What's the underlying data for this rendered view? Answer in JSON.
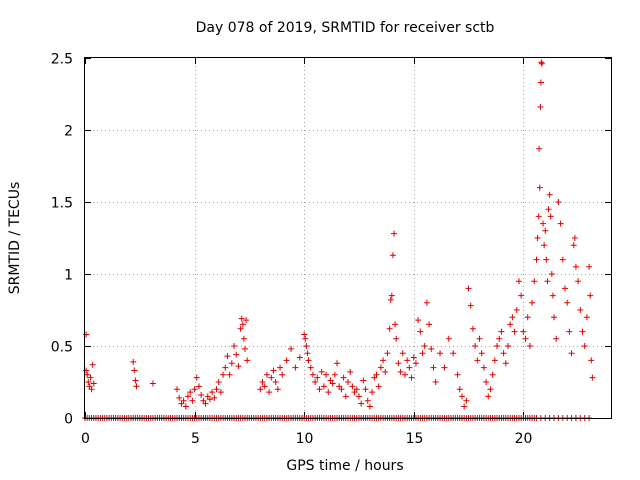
{
  "chart_data": {
    "type": "scatter",
    "title": "Day 078 of 2019, SRMTID for receiver sctb",
    "xlabel": "GPS time / hours",
    "ylabel": "SRMTID / TECUs",
    "xlim": [
      0,
      24
    ],
    "ylim": [
      0,
      2.5
    ],
    "xticks": [
      0,
      5,
      10,
      15,
      20
    ],
    "xtick_labels": [
      "0",
      "5",
      "10",
      "15",
      "20"
    ],
    "yticks": [
      0,
      0.5,
      1,
      1.5,
      2,
      2.5
    ],
    "ytick_labels": [
      "0",
      "0.5",
      "1",
      "1.5",
      "2",
      "2.5"
    ],
    "grid": true,
    "marker": "+",
    "series": [
      {
        "name": "SRMTID",
        "color": "#e00000",
        "points": [
          [
            0.05,
            0.58
          ],
          [
            0.05,
            0.33
          ],
          [
            0.1,
            0.3
          ],
          [
            0.15,
            0.25
          ],
          [
            0.2,
            0.22
          ],
          [
            0.25,
            0.28
          ],
          [
            0.3,
            0.2
          ],
          [
            0.35,
            0.37
          ],
          [
            0.4,
            0.24
          ],
          [
            2.2,
            0.39
          ],
          [
            2.25,
            0.33
          ],
          [
            2.3,
            0.26
          ],
          [
            2.35,
            0.22
          ],
          [
            3.1,
            0.24
          ],
          [
            4.2,
            0.2
          ],
          [
            4.3,
            0.14
          ],
          [
            4.4,
            0.1
          ],
          [
            4.5,
            0.12
          ],
          [
            4.6,
            0.08
          ],
          [
            4.7,
            0.15
          ],
          [
            4.8,
            0.18
          ],
          [
            4.9,
            0.12
          ],
          [
            5.0,
            0.2
          ],
          [
            5.1,
            0.28
          ],
          [
            5.2,
            0.22
          ],
          [
            5.3,
            0.16
          ],
          [
            5.4,
            0.12
          ],
          [
            5.5,
            0.1
          ],
          [
            5.6,
            0.15
          ],
          [
            5.7,
            0.13
          ],
          [
            5.8,
            0.18
          ],
          [
            5.9,
            0.14
          ],
          [
            6.0,
            0.2
          ],
          [
            6.1,
            0.25
          ],
          [
            6.2,
            0.18
          ],
          [
            6.3,
            0.3
          ],
          [
            6.4,
            0.35
          ],
          [
            6.5,
            0.43
          ],
          [
            6.6,
            0.3
          ],
          [
            6.7,
            0.38
          ],
          [
            6.8,
            0.5
          ],
          [
            6.9,
            0.44
          ],
          [
            7.0,
            0.36
          ],
          [
            7.1,
            0.62
          ],
          [
            7.15,
            0.69
          ],
          [
            7.2,
            0.65
          ],
          [
            7.25,
            0.55
          ],
          [
            7.3,
            0.48
          ],
          [
            7.35,
            0.68
          ],
          [
            7.4,
            0.4
          ],
          [
            8.0,
            0.2
          ],
          [
            8.1,
            0.25
          ],
          [
            8.2,
            0.22
          ],
          [
            8.3,
            0.3
          ],
          [
            8.4,
            0.18
          ],
          [
            8.5,
            0.28
          ],
          [
            8.6,
            0.33
          ],
          [
            8.7,
            0.25
          ],
          [
            8.8,
            0.2
          ],
          [
            8.9,
            0.35
          ],
          [
            9.0,
            0.3
          ],
          [
            9.2,
            0.4
          ],
          [
            9.4,
            0.48
          ],
          [
            9.6,
            0.35
          ],
          [
            9.8,
            0.42
          ],
          [
            10.0,
            0.58
          ],
          [
            10.05,
            0.55
          ],
          [
            10.1,
            0.5
          ],
          [
            10.15,
            0.45
          ],
          [
            10.2,
            0.4
          ],
          [
            10.3,
            0.35
          ],
          [
            10.4,
            0.3
          ],
          [
            10.5,
            0.25
          ],
          [
            10.6,
            0.28
          ],
          [
            10.7,
            0.2
          ],
          [
            10.8,
            0.32
          ],
          [
            10.9,
            0.22
          ],
          [
            11.0,
            0.3
          ],
          [
            11.1,
            0.18
          ],
          [
            11.2,
            0.26
          ],
          [
            11.3,
            0.24
          ],
          [
            11.4,
            0.3
          ],
          [
            11.5,
            0.38
          ],
          [
            11.6,
            0.22
          ],
          [
            11.7,
            0.2
          ],
          [
            11.8,
            0.28
          ],
          [
            11.9,
            0.15
          ],
          [
            12.0,
            0.25
          ],
          [
            12.1,
            0.32
          ],
          [
            12.2,
            0.22
          ],
          [
            12.3,
            0.18
          ],
          [
            12.4,
            0.2
          ],
          [
            12.5,
            0.15
          ],
          [
            12.6,
            0.1
          ],
          [
            12.7,
            0.26
          ],
          [
            12.8,
            0.2
          ],
          [
            12.9,
            0.12
          ],
          [
            13.0,
            0.08
          ],
          [
            13.1,
            0.18
          ],
          [
            13.2,
            0.28
          ],
          [
            13.3,
            0.3
          ],
          [
            13.4,
            0.22
          ],
          [
            13.5,
            0.35
          ],
          [
            13.6,
            0.4
          ],
          [
            13.7,
            0.32
          ],
          [
            13.8,
            0.45
          ],
          [
            13.9,
            0.62
          ],
          [
            13.95,
            0.82
          ],
          [
            14.0,
            0.85
          ],
          [
            14.05,
            1.13
          ],
          [
            14.1,
            1.28
          ],
          [
            14.15,
            0.65
          ],
          [
            14.2,
            0.55
          ],
          [
            14.3,
            0.38
          ],
          [
            14.4,
            0.32
          ],
          [
            14.5,
            0.45
          ],
          [
            14.6,
            0.3
          ],
          [
            14.7,
            0.4
          ],
          [
            14.8,
            0.35
          ],
          [
            14.9,
            0.28
          ],
          [
            15.0,
            0.42
          ],
          [
            15.1,
            0.38
          ],
          [
            15.2,
            0.68
          ],
          [
            15.3,
            0.6
          ],
          [
            15.4,
            0.45
          ],
          [
            15.5,
            0.5
          ],
          [
            15.6,
            0.8
          ],
          [
            15.7,
            0.65
          ],
          [
            15.8,
            0.48
          ],
          [
            15.9,
            0.35
          ],
          [
            16.0,
            0.25
          ],
          [
            16.2,
            0.45
          ],
          [
            16.4,
            0.35
          ],
          [
            16.6,
            0.55
          ],
          [
            16.8,
            0.45
          ],
          [
            17.0,
            0.3
          ],
          [
            17.1,
            0.2
          ],
          [
            17.2,
            0.15
          ],
          [
            17.3,
            0.08
          ],
          [
            17.4,
            0.12
          ],
          [
            17.5,
            0.9
          ],
          [
            17.6,
            0.78
          ],
          [
            17.7,
            0.62
          ],
          [
            17.8,
            0.5
          ],
          [
            17.9,
            0.4
          ],
          [
            18.0,
            0.55
          ],
          [
            18.1,
            0.45
          ],
          [
            18.2,
            0.35
          ],
          [
            18.3,
            0.25
          ],
          [
            18.4,
            0.15
          ],
          [
            18.5,
            0.2
          ],
          [
            18.6,
            0.3
          ],
          [
            18.7,
            0.4
          ],
          [
            18.8,
            0.5
          ],
          [
            18.9,
            0.55
          ],
          [
            19.0,
            0.6
          ],
          [
            19.1,
            0.45
          ],
          [
            19.2,
            0.38
          ],
          [
            19.3,
            0.5
          ],
          [
            19.4,
            0.65
          ],
          [
            19.5,
            0.7
          ],
          [
            19.6,
            0.6
          ],
          [
            19.7,
            0.75
          ],
          [
            19.8,
            0.95
          ],
          [
            19.9,
            0.85
          ],
          [
            20.0,
            0.6
          ],
          [
            20.1,
            0.55
          ],
          [
            20.2,
            0.7
          ],
          [
            20.3,
            0.5
          ],
          [
            20.4,
            0.8
          ],
          [
            20.5,
            0.95
          ],
          [
            20.6,
            1.1
          ],
          [
            20.65,
            1.25
          ],
          [
            20.7,
            1.4
          ],
          [
            20.72,
            1.87
          ],
          [
            20.75,
            1.6
          ],
          [
            20.78,
            2.16
          ],
          [
            20.8,
            2.33
          ],
          [
            20.82,
            2.47
          ],
          [
            20.85,
            2.46
          ],
          [
            20.9,
            1.35
          ],
          [
            20.95,
            1.2
          ],
          [
            21.0,
            1.3
          ],
          [
            21.05,
            1.1
          ],
          [
            21.1,
            0.95
          ],
          [
            21.15,
            1.45
          ],
          [
            21.2,
            1.55
          ],
          [
            21.25,
            1.4
          ],
          [
            21.3,
            1.0
          ],
          [
            21.35,
            0.85
          ],
          [
            21.4,
            0.7
          ],
          [
            21.5,
            0.55
          ],
          [
            21.6,
            1.5
          ],
          [
            21.7,
            1.35
          ],
          [
            21.8,
            1.1
          ],
          [
            21.9,
            0.9
          ],
          [
            22.0,
            0.8
          ],
          [
            22.1,
            0.6
          ],
          [
            22.2,
            0.45
          ],
          [
            22.3,
            1.2
          ],
          [
            22.35,
            1.25
          ],
          [
            22.4,
            1.05
          ],
          [
            22.5,
            0.95
          ],
          [
            22.6,
            0.75
          ],
          [
            22.7,
            0.6
          ],
          [
            22.8,
            0.5
          ],
          [
            22.9,
            0.7
          ],
          [
            23.0,
            1.05
          ],
          [
            23.05,
            0.85
          ],
          [
            23.1,
            0.4
          ],
          [
            23.15,
            0.28
          ]
        ]
      }
    ],
    "zero_points": [
      0.0,
      0.1,
      0.2,
      0.3,
      0.4,
      0.5,
      0.6,
      0.7,
      0.8,
      0.9,
      1.0,
      1.1,
      1.2,
      1.3,
      1.4,
      1.5,
      1.6,
      1.7,
      1.8,
      1.9,
      2.0,
      2.1,
      2.2,
      2.3,
      2.4,
      2.5,
      2.6,
      2.7,
      2.8,
      2.9,
      3.0,
      3.1,
      3.2,
      3.3,
      3.4,
      3.5,
      3.6,
      3.7,
      3.8,
      3.9,
      4.0,
      4.1,
      4.2,
      4.3,
      4.4,
      4.5,
      4.6,
      4.7,
      4.8,
      4.9,
      5.0,
      5.1,
      5.2,
      5.3,
      5.4,
      5.5,
      5.6,
      5.7,
      5.8,
      5.9,
      6.0,
      6.1,
      6.2,
      6.3,
      6.4,
      6.5,
      6.6,
      6.7,
      6.8,
      6.9,
      7.0,
      7.1,
      7.2,
      7.3,
      7.4,
      7.5,
      7.6,
      7.7,
      7.8,
      7.9,
      8.0,
      8.1,
      8.2,
      8.3,
      8.4,
      8.5,
      8.6,
      8.7,
      8.8,
      8.9,
      9.0,
      9.1,
      9.2,
      9.3,
      9.4,
      9.5,
      9.6,
      9.7,
      9.8,
      9.9,
      10.0,
      10.1,
      10.2,
      10.3,
      10.4,
      10.5,
      10.6,
      10.7,
      10.8,
      10.9,
      11.0,
      11.1,
      11.2,
      11.3,
      11.4,
      11.5,
      11.6,
      11.7,
      11.8,
      11.9,
      12.0,
      12.1,
      12.2,
      12.3,
      12.4,
      12.5,
      12.6,
      12.7,
      12.8,
      12.9,
      13.0,
      13.1,
      13.2,
      13.3,
      13.4,
      13.5,
      13.6,
      13.7,
      13.8,
      13.9,
      14.0,
      14.1,
      14.2,
      14.3,
      14.4,
      14.5,
      14.6,
      14.7,
      14.8,
      14.9,
      15.0,
      15.1,
      15.2,
      15.3,
      15.4,
      15.5,
      15.6,
      15.7,
      15.8,
      15.9,
      16.0,
      16.1,
      16.2,
      16.3,
      16.4,
      16.5,
      16.6,
      16.7,
      16.8,
      16.9,
      17.0,
      17.1,
      17.2,
      17.3,
      17.4,
      17.5,
      17.6,
      17.7,
      17.8,
      17.9,
      18.0,
      18.1,
      18.2,
      18.3,
      18.4,
      18.5,
      18.6,
      18.7,
      18.8,
      18.9,
      19.0,
      19.1,
      19.2,
      19.3,
      19.4,
      19.5,
      19.6,
      19.7,
      19.8,
      19.9,
      20.0,
      20.1,
      20.2,
      20.3,
      20.4,
      20.5,
      20.6,
      20.8,
      21.0,
      21.2,
      21.4,
      21.6,
      21.8,
      22.0,
      22.2,
      22.4,
      22.6,
      22.8,
      23.0
    ]
  }
}
